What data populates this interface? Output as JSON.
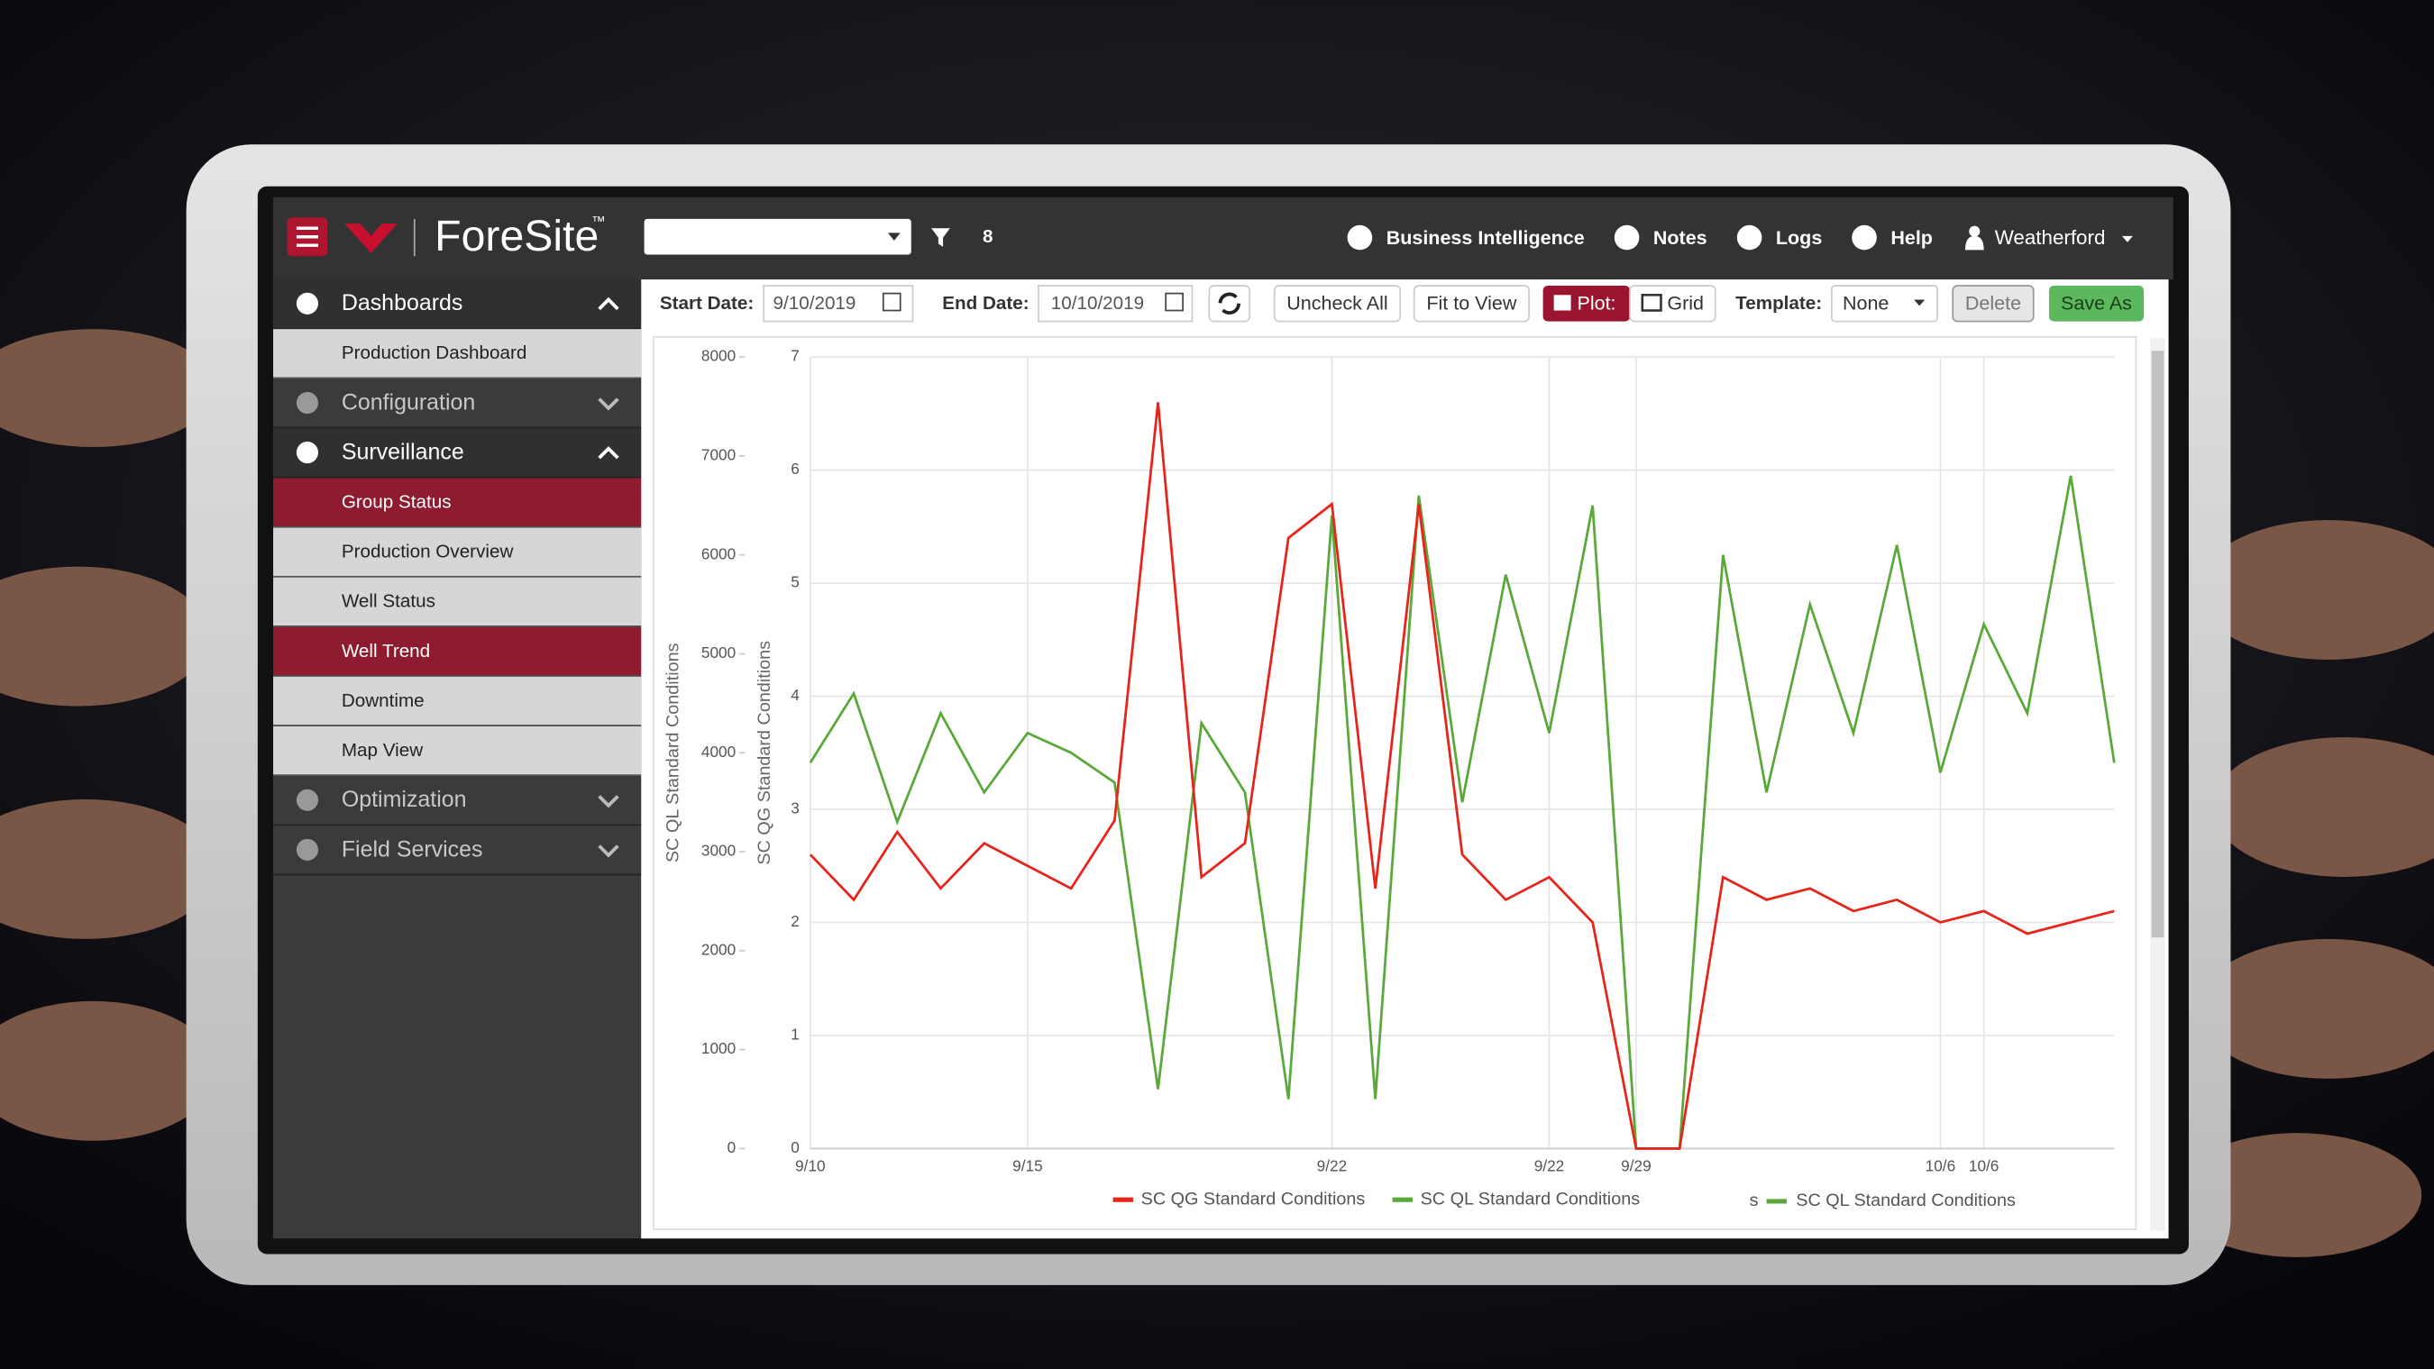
{
  "header": {
    "brand": "ForeSite",
    "trademark": "™",
    "filter_count": "8",
    "links": [
      "Business Intelligence",
      "Notes",
      "Logs",
      "Help"
    ],
    "user": "Weatherford"
  },
  "sidebar": {
    "sections": [
      {
        "label": "Dashboards",
        "items": [
          {
            "label": "Production Dashboard",
            "active": false
          }
        ]
      },
      {
        "label": "Configuration",
        "items": []
      },
      {
        "label": "Surveillance",
        "items": [
          {
            "label": "Group Status",
            "active": true
          },
          {
            "label": "Production Overview",
            "active": false
          },
          {
            "label": "Well Status",
            "active": false
          },
          {
            "label": "Well Trend",
            "active": true
          },
          {
            "label": "Downtime",
            "active": false
          },
          {
            "label": "Map View",
            "active": false
          }
        ]
      },
      {
        "label": "Optimization",
        "items": []
      },
      {
        "label": "Field Services",
        "items": []
      }
    ]
  },
  "toolbar": {
    "start_label": "Start Date:",
    "start_date": "9/10/2019",
    "end_label": "End Date:",
    "end_date": "10/10/2019",
    "buttons": [
      "Uncheck All",
      "Fit to View"
    ],
    "plot": "Plot:",
    "grid": "Grid",
    "template_label": "Template:",
    "template": "None",
    "delete": "Delete",
    "save_as": "Save As"
  },
  "chart_data": {
    "type": "line",
    "x": [
      "9/10",
      "9/11",
      "9/12",
      "9/13",
      "9/14",
      "9/15",
      "9/16",
      "9/17",
      "9/18",
      "9/19",
      "9/20",
      "9/21",
      "9/22",
      "9/23",
      "9/24",
      "9/25",
      "9/26",
      "9/27",
      "9/28",
      "9/29",
      "9/30",
      "10/1",
      "10/2",
      "10/3",
      "10/4",
      "10/5",
      "10/6",
      "10/7",
      "10/8",
      "10/9",
      "10/10"
    ],
    "series": [
      {
        "name": "SC QG Standard Conditions",
        "color": "#e8231a",
        "axis": "y2",
        "values": [
          2.6,
          2.2,
          2.8,
          2.3,
          2.7,
          2.5,
          2.3,
          2.9,
          6.6,
          2.4,
          2.7,
          5.4,
          5.7,
          2.3,
          5.7,
          2.6,
          2.2,
          2.4,
          2.0,
          0,
          0,
          2.4,
          2.2,
          2.3,
          2.1,
          2.2,
          2.0,
          2.1,
          1.9,
          2.0,
          2.1
        ]
      },
      {
        "name": "SC QL Standard Conditions",
        "color": "#5aa83a",
        "values": [
          3900,
          4600,
          3300,
          4400,
          3600,
          4200,
          4000,
          3700,
          600,
          4300,
          3600,
          500,
          6400,
          500,
          6600,
          3500,
          5800,
          4200,
          6500,
          0,
          0,
          6000,
          3600,
          5500,
          4200,
          6100,
          3800,
          5300,
          4400,
          6800,
          3900
        ]
      }
    ],
    "ylabel": "SC QL Standard Conditions",
    "y2label": "SC QG Standard Conditions",
    "ylim": [
      0,
      8000
    ],
    "yticks": [
      0,
      1000,
      2000,
      3000,
      4000,
      5000,
      6000,
      7000,
      8000
    ],
    "y2lim": [
      0,
      7
    ],
    "y2ticks": [
      0,
      1,
      2,
      3,
      4,
      5,
      6,
      7
    ],
    "xticks": [
      "9/10",
      "9/15",
      "9/22",
      {
        "value": "9/27",
        "label": "9/22"
      },
      "9/29",
      "10/6",
      {
        "value": "10/7",
        "label": "10/6"
      }
    ],
    "grid": true,
    "legend_extra": {
      "prefix": "s",
      "name": "SC QL Standard Conditions",
      "color": "#5aa83a"
    }
  }
}
